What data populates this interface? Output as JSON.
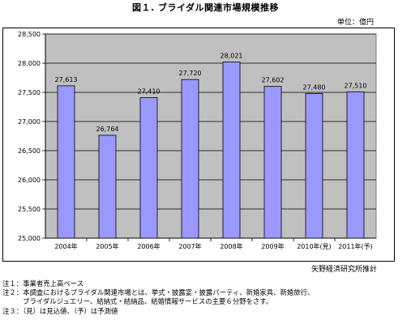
{
  "header": {
    "title": "図１. ブライダル関連市場規模推移",
    "unit": "単位：億円"
  },
  "chart_data": {
    "type": "bar",
    "categories": [
      "2004年",
      "2005年",
      "2006年",
      "2007年",
      "2008年",
      "2009年",
      "2010年(見)",
      "2011年(予)"
    ],
    "values": [
      27613,
      26764,
      27410,
      27720,
      28021,
      27602,
      27480,
      27510
    ],
    "value_labels": [
      "27,613",
      "26,764",
      "27,410",
      "27,720",
      "28,021",
      "27,602",
      "27,480",
      "27,510"
    ],
    "ylim": [
      25000,
      28500
    ],
    "yticks": [
      25000,
      25500,
      26000,
      26500,
      27000,
      27500,
      28000,
      28500
    ],
    "ytick_labels": [
      "25,000",
      "25,500",
      "26,000",
      "26,500",
      "27,000",
      "27,500",
      "28,000",
      "28,500"
    ],
    "bar_color": "#9999FF",
    "plot_bg": "#C0C0C0",
    "grid": true
  },
  "footer": {
    "source": "矢野経済研究所推計",
    "notes": [
      "注１：事業者売上高ベース",
      "注２：本調査におけるブライダル関連市場とは、挙式・披露宴・披露パーティ、新婚家具、新婚旅行、\n　　　ブライダルジュエリー、結納式・結納品、結婚情報サービスの主要６分野をさす。",
      "注３：（見）は見込値、（予）は予測値"
    ]
  }
}
